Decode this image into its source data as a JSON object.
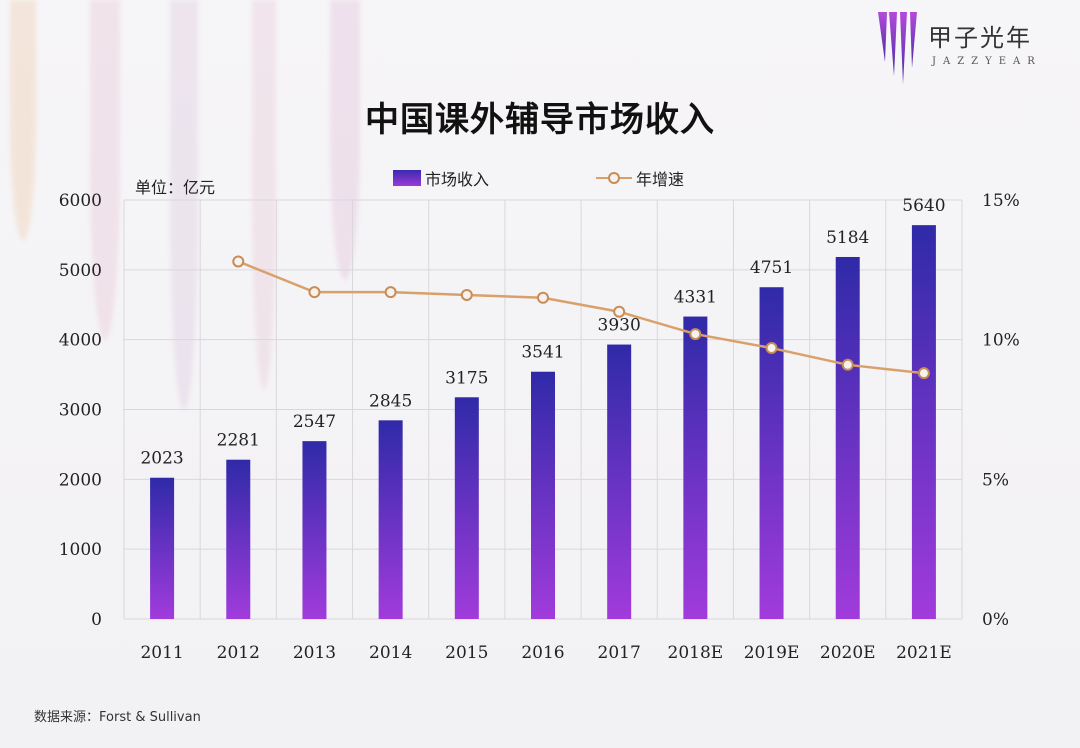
{
  "logo": {
    "name": "甲子光年",
    "sub": "JAZZYEAR"
  },
  "unit_label": "单位：亿元",
  "source": "数据来源：Forst & Sullivan",
  "colors": {
    "bar_top": "#2f2aa8",
    "bar_bottom": "#a13bdc",
    "line": "#d9a06a",
    "marker_stroke": "#c88c57",
    "grid": "#d9d7dc"
  },
  "chart_data": {
    "type": "bar",
    "title": "中国课外辅导市场收入",
    "categories": [
      "2011",
      "2012",
      "2013",
      "2014",
      "2015",
      "2016",
      "2017",
      "2018E",
      "2019E",
      "2020E",
      "2021E"
    ],
    "series": [
      {
        "name": "市场收入",
        "type": "bar",
        "axis": "left",
        "values": [
          2023,
          2281,
          2547,
          2845,
          3175,
          3541,
          3930,
          4331,
          4751,
          5184,
          5640
        ],
        "data_labels": [
          "2023",
          "2281",
          "2547",
          "2845",
          "3175",
          "3541",
          "3930",
          "4331",
          "4751",
          "5184",
          "5640"
        ]
      },
      {
        "name": "年增速",
        "type": "line",
        "axis": "right",
        "values": [
          null,
          12.8,
          11.7,
          11.7,
          11.6,
          11.5,
          11.0,
          10.2,
          9.7,
          9.1,
          8.8
        ]
      }
    ],
    "left_axis": {
      "ylim": [
        0,
        6000
      ],
      "ticks": [
        0,
        1000,
        2000,
        3000,
        4000,
        5000,
        6000
      ],
      "tick_labels": [
        "0",
        "1000",
        "2000",
        "3000",
        "4000",
        "5000",
        "6000"
      ]
    },
    "right_axis": {
      "ylim": [
        0,
        15
      ],
      "ticks": [
        0,
        5,
        10,
        15
      ],
      "tick_labels": [
        "0%",
        "5%",
        "10%",
        "15%"
      ]
    },
    "grid": true,
    "legend": "top-center"
  }
}
